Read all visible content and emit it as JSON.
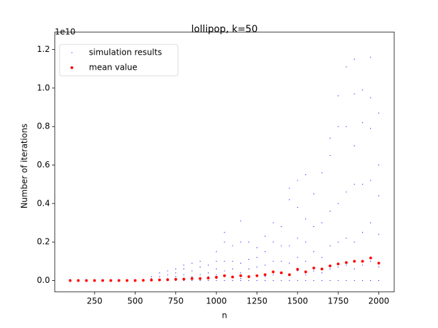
{
  "chart_data": {
    "type": "scatter",
    "title": "lollipop, k=50",
    "x_label": "n",
    "y_label": "Number of iterations",
    "y_offset_label": "1e10",
    "xlim": [
      5,
      2095
    ],
    "ylim": [
      -0.0586,
      1.2517
    ],
    "xticks": [
      250,
      500,
      750,
      1000,
      1250,
      1500,
      1750,
      2000
    ],
    "yticks": [
      {
        "value": 0,
        "label": "0.0"
      },
      0.2,
      0.4,
      0.6,
      0.8,
      {
        "value": 1,
        "label": "1.0"
      },
      1.2
    ],
    "legend": "upper left",
    "series": [
      {
        "name": "simulation results",
        "color": "#0000ff",
        "marker": "pixel",
        "x": [
          100,
          150,
          200,
          250,
          300,
          350,
          400,
          450,
          500,
          550,
          600,
          600,
          600,
          650,
          650,
          650,
          700,
          700,
          700,
          700,
          750,
          750,
          750,
          750,
          800,
          800,
          800,
          800,
          800,
          850,
          850,
          850,
          850,
          900,
          900,
          900,
          900,
          900,
          950,
          950,
          950,
          950,
          1000,
          1000,
          1000,
          1000,
          1000,
          1000,
          1050,
          1050,
          1050,
          1050,
          1050,
          1050,
          1100,
          1100,
          1100,
          1100,
          1100,
          1150,
          1150,
          1150,
          1150,
          1150,
          1150,
          1200,
          1200,
          1200,
          1200,
          1200,
          1250,
          1250,
          1250,
          1250,
          1250,
          1300,
          1300,
          1300,
          1300,
          1300,
          1350,
          1350,
          1350,
          1350,
          1350,
          1400,
          1400,
          1400,
          1400,
          1400,
          1450,
          1450,
          1450,
          1450,
          1450,
          1450,
          1500,
          1500,
          1500,
          1500,
          1500,
          1500,
          1550,
          1550,
          1550,
          1550,
          1550,
          1550,
          1600,
          1600,
          1600,
          1600,
          1600,
          1650,
          1650,
          1650,
          1650,
          1650,
          1700,
          1700,
          1700,
          1700,
          1700,
          1700,
          1750,
          1750,
          1750,
          1750,
          1750,
          1750,
          1800,
          1800,
          1800,
          1800,
          1800,
          1800,
          1850,
          1850,
          1850,
          1850,
          1850,
          1850,
          1850,
          1900,
          1900,
          1900,
          1900,
          1900,
          1900,
          1950,
          1950,
          1950,
          1950,
          1950,
          1950,
          1950,
          2000,
          2000,
          2000,
          2000,
          2000,
          2000
        ],
        "values": [
          0,
          0,
          0,
          0,
          0,
          0,
          0,
          0,
          0,
          0,
          0,
          0.01,
          0.02,
          0,
          0.02,
          0.04,
          0,
          0.01,
          0.03,
          0.05,
          0,
          0.02,
          0.04,
          0.06,
          0,
          0.01,
          0.03,
          0.06,
          0.08,
          0,
          0.02,
          0.05,
          0.09,
          0,
          0.01,
          0.03,
          0.07,
          0.1,
          0,
          0.02,
          0.04,
          0.08,
          0,
          0.01,
          0.03,
          0.06,
          0.1,
          0.15,
          0,
          0.02,
          0.05,
          0.1,
          0.2,
          0.25,
          0,
          0.02,
          0.06,
          0.1,
          0.18,
          0,
          0.01,
          0.04,
          0.09,
          0.2,
          0.31,
          0,
          0.02,
          0.06,
          0.11,
          0.2,
          0,
          0.03,
          0.07,
          0.12,
          0.17,
          0,
          0.02,
          0.08,
          0.15,
          0.23,
          0,
          0.03,
          0.1,
          0.2,
          0.3,
          0,
          0.04,
          0.1,
          0.18,
          0.28,
          0,
          0.03,
          0.09,
          0.18,
          0.42,
          0.48,
          0,
          0.05,
          0.12,
          0.22,
          0.38,
          0.52,
          0,
          0.03,
          0.1,
          0.2,
          0.32,
          0.55,
          0,
          0.05,
          0.15,
          0.28,
          0.45,
          0,
          0.04,
          0.12,
          0.3,
          0.56,
          0,
          0.06,
          0.18,
          0.36,
          0.65,
          0.74,
          0,
          0.07,
          0.2,
          0.4,
          0.8,
          0.96,
          0,
          0.08,
          0.22,
          0.46,
          0.8,
          1.11,
          0,
          0.06,
          0.2,
          0.5,
          0.7,
          0.97,
          1.15,
          0,
          0.08,
          0.25,
          0.5,
          0.82,
          0.99,
          0,
          0.1,
          0.3,
          0.52,
          0.79,
          0.95,
          1.16,
          0,
          0.07,
          0.24,
          0.44,
          0.6,
          0.87
        ]
      },
      {
        "name": "mean value",
        "color": "#ff0000",
        "marker": "point",
        "x": [
          100,
          150,
          200,
          250,
          300,
          350,
          400,
          450,
          500,
          550,
          600,
          650,
          700,
          750,
          800,
          850,
          900,
          950,
          1000,
          1050,
          1100,
          1150,
          1200,
          1250,
          1300,
          1350,
          1400,
          1450,
          1500,
          1550,
          1600,
          1650,
          1700,
          1750,
          1800,
          1850,
          1900,
          1950,
          2000
        ],
        "values": [
          0,
          0,
          0,
          0,
          0,
          0,
          0,
          0,
          0,
          0.001,
          0.002,
          0.003,
          0.004,
          0.006,
          0.007,
          0.01,
          0.01,
          0.013,
          0.017,
          0.025,
          0.018,
          0.025,
          0.02,
          0.025,
          0.03,
          0.045,
          0.04,
          0.03,
          0.058,
          0.045,
          0.065,
          0.06,
          0.076,
          0.086,
          0.093,
          0.1,
          0.1,
          0.117,
          0.09
        ]
      }
    ]
  }
}
